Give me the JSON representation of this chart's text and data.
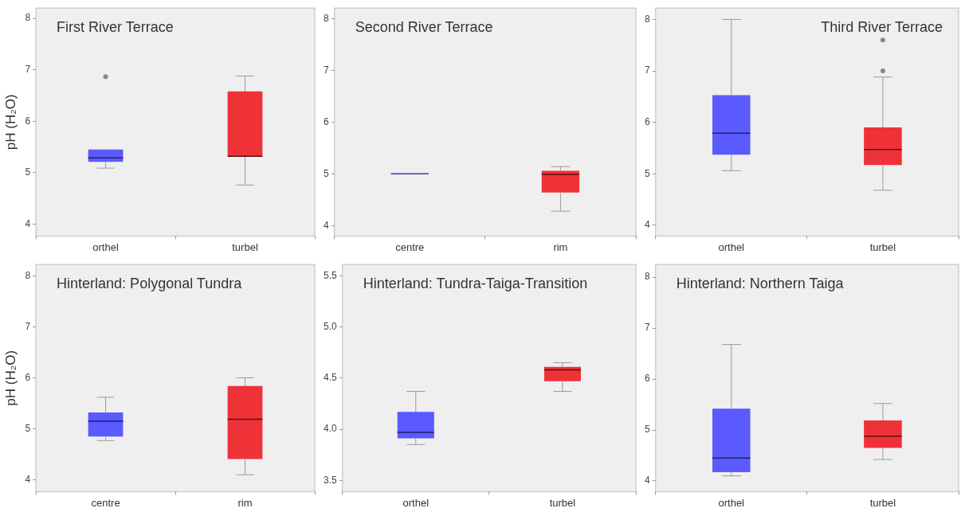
{
  "chart_data": [
    {
      "type": "box",
      "title": "First River Terrace",
      "ylabel": "pH (H₂O)",
      "categories": [
        "orthel",
        "turbel"
      ],
      "colors": [
        "#5a5aff",
        "#ee3238"
      ],
      "ylim": [
        3.77,
        8.2
      ],
      "yticks": [
        4,
        5,
        6,
        7,
        8
      ],
      "boxes": [
        {
          "low": 5.09,
          "q1": 5.21,
          "median": 5.29,
          "q3": 5.45,
          "high": 5.45,
          "outliers": [
            6.87
          ]
        },
        {
          "low": 4.76,
          "q1": 5.31,
          "median": 5.32,
          "q3": 6.58,
          "high": 6.88
        }
      ]
    },
    {
      "type": "box",
      "title": "Second River Terrace",
      "categories": [
        "centre",
        "rim"
      ],
      "colors": [
        "#3a3ab0",
        "#ee3238"
      ],
      "ylim": [
        3.8,
        8.2
      ],
      "yticks": [
        4,
        5,
        6,
        7,
        8
      ],
      "boxes": [
        {
          "low": 5.0,
          "q1": 5.0,
          "median": 5.0,
          "q3": 5.0,
          "high": 5.0
        },
        {
          "low": 4.28,
          "q1": 4.64,
          "median": 4.99,
          "q3": 5.06,
          "high": 5.14
        }
      ]
    },
    {
      "type": "box",
      "title": "Third River Terrace",
      "categories": [
        "orthel",
        "turbel"
      ],
      "colors": [
        "#5a5aff",
        "#ee3238"
      ],
      "ylim": [
        3.79,
        8.22
      ],
      "yticks": [
        4,
        5,
        6,
        7,
        8
      ],
      "boxes": [
        {
          "low": 5.06,
          "q1": 5.37,
          "median": 5.79,
          "q3": 6.53,
          "high": 8.0
        },
        {
          "low": 4.68,
          "q1": 5.17,
          "median": 5.47,
          "q3": 5.9,
          "high": 6.88,
          "outliers": [
            7.0,
            7.6
          ]
        }
      ]
    },
    {
      "type": "box",
      "title": "Hinterland: Polygonal Tundra",
      "ylabel": "pH (H₂O)",
      "categories": [
        "centre",
        "rim"
      ],
      "colors": [
        "#5a5aff",
        "#ee3238"
      ],
      "ylim": [
        3.77,
        8.22
      ],
      "yticks": [
        4,
        5,
        6,
        7,
        8
      ],
      "boxes": [
        {
          "low": 4.77,
          "q1": 4.85,
          "median": 5.15,
          "q3": 5.32,
          "high": 5.62
        },
        {
          "low": 4.1,
          "q1": 4.41,
          "median": 5.19,
          "q3": 5.84,
          "high": 6.0
        }
      ]
    },
    {
      "type": "box",
      "title": "Hinterland: Tundra-Taiga-Transition",
      "categories": [
        "orthel",
        "turbel"
      ],
      "colors": [
        "#5a5aff",
        "#ee3238"
      ],
      "ylim": [
        3.39,
        5.61
      ],
      "yticks": [
        {
          "value": 3.5,
          "label": "3.5"
        },
        {
          "value": 4,
          "label": "4.0"
        },
        {
          "value": 4.5,
          "label": "4.5"
        },
        {
          "value": 5,
          "label": "5.0"
        },
        {
          "value": 5.5,
          "label": "5.5"
        }
      ],
      "boxes": [
        {
          "low": 3.85,
          "q1": 3.91,
          "median": 3.97,
          "q3": 4.17,
          "high": 4.37
        },
        {
          "low": 4.37,
          "q1": 4.47,
          "median": 4.58,
          "q3": 4.61,
          "high": 4.65
        }
      ]
    },
    {
      "type": "box",
      "title": "Hinterland: Northern Taiga",
      "categories": [
        "orthel",
        "turbel"
      ],
      "colors": [
        "#5a5aff",
        "#ee3238"
      ],
      "ylim": [
        3.79,
        8.25
      ],
      "yticks": [
        4,
        5,
        6,
        7,
        8
      ],
      "boxes": [
        {
          "low": 4.1,
          "q1": 4.17,
          "median": 4.45,
          "q3": 5.42,
          "high": 6.68
        },
        {
          "low": 4.42,
          "q1": 4.65,
          "median": 4.88,
          "q3": 5.19,
          "high": 5.52
        }
      ]
    }
  ]
}
